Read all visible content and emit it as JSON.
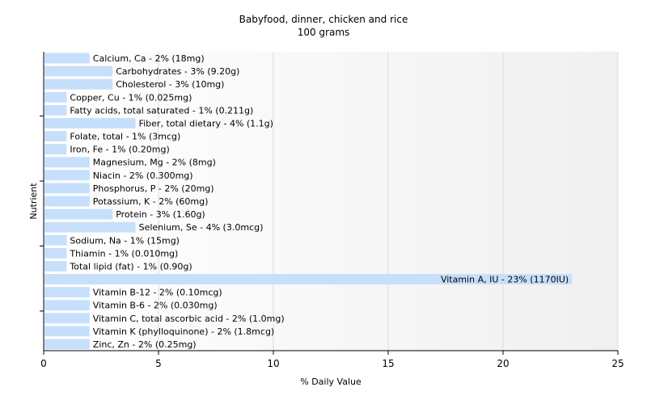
{
  "chart_data": {
    "type": "bar",
    "orientation": "horizontal",
    "title": "Babyfood, dinner, chicken and rice",
    "subtitle": "100 grams",
    "xlabel": "% Daily Value",
    "ylabel": "Nutrient",
    "xlim": [
      0,
      25
    ],
    "xticks": [
      "0",
      "5",
      "10",
      "15",
      "20",
      "25"
    ],
    "grid": true,
    "bar_color": "#c6e0fb",
    "categories": [
      "Calcium, Ca",
      "Carbohydrates",
      "Cholesterol",
      "Copper, Cu",
      "Fatty acids, total saturated",
      "Fiber, total dietary",
      "Folate, total",
      "Iron, Fe",
      "Magnesium, Mg",
      "Niacin",
      "Phosphorus, P",
      "Potassium, K",
      "Protein",
      "Selenium, Se",
      "Sodium, Na",
      "Thiamin",
      "Total lipid (fat)",
      "Vitamin A, IU",
      "Vitamin B-12",
      "Vitamin B-6",
      "Vitamin C, total ascorbic acid",
      "Vitamin K (phylloquinone)",
      "Zinc, Zn"
    ],
    "values": [
      2,
      3,
      3,
      1,
      1,
      4,
      1,
      1,
      2,
      2,
      2,
      2,
      3,
      4,
      1,
      1,
      1,
      23,
      2,
      2,
      2,
      2,
      2
    ],
    "labels": [
      "Calcium, Ca - 2% (18mg)",
      "Carbohydrates - 3% (9.20g)",
      "Cholesterol - 3% (10mg)",
      "Copper, Cu - 1% (0.025mg)",
      "Fatty acids, total saturated - 1% (0.211g)",
      "Fiber, total dietary - 4% (1.1g)",
      "Folate, total - 1% (3mcg)",
      "Iron, Fe - 1% (0.20mg)",
      "Magnesium, Mg - 2% (8mg)",
      "Niacin - 2% (0.300mg)",
      "Phosphorus, P - 2% (20mg)",
      "Potassium, K - 2% (60mg)",
      "Protein - 3% (1.60g)",
      "Selenium, Se - 4% (3.0mcg)",
      "Sodium, Na - 1% (15mg)",
      "Thiamin - 1% (0.010mg)",
      "Total lipid (fat) - 1% (0.90g)",
      "Vitamin A, IU - 23% (1170IU)",
      "Vitamin B-12 - 2% (0.10mcg)",
      "Vitamin B-6 - 2% (0.030mg)",
      "Vitamin C, total ascorbic acid - 2% (1.0mg)",
      "Vitamin K (phylloquinone) - 2% (1.8mcg)",
      "Zinc, Zn - 2% (0.25mg)"
    ]
  }
}
